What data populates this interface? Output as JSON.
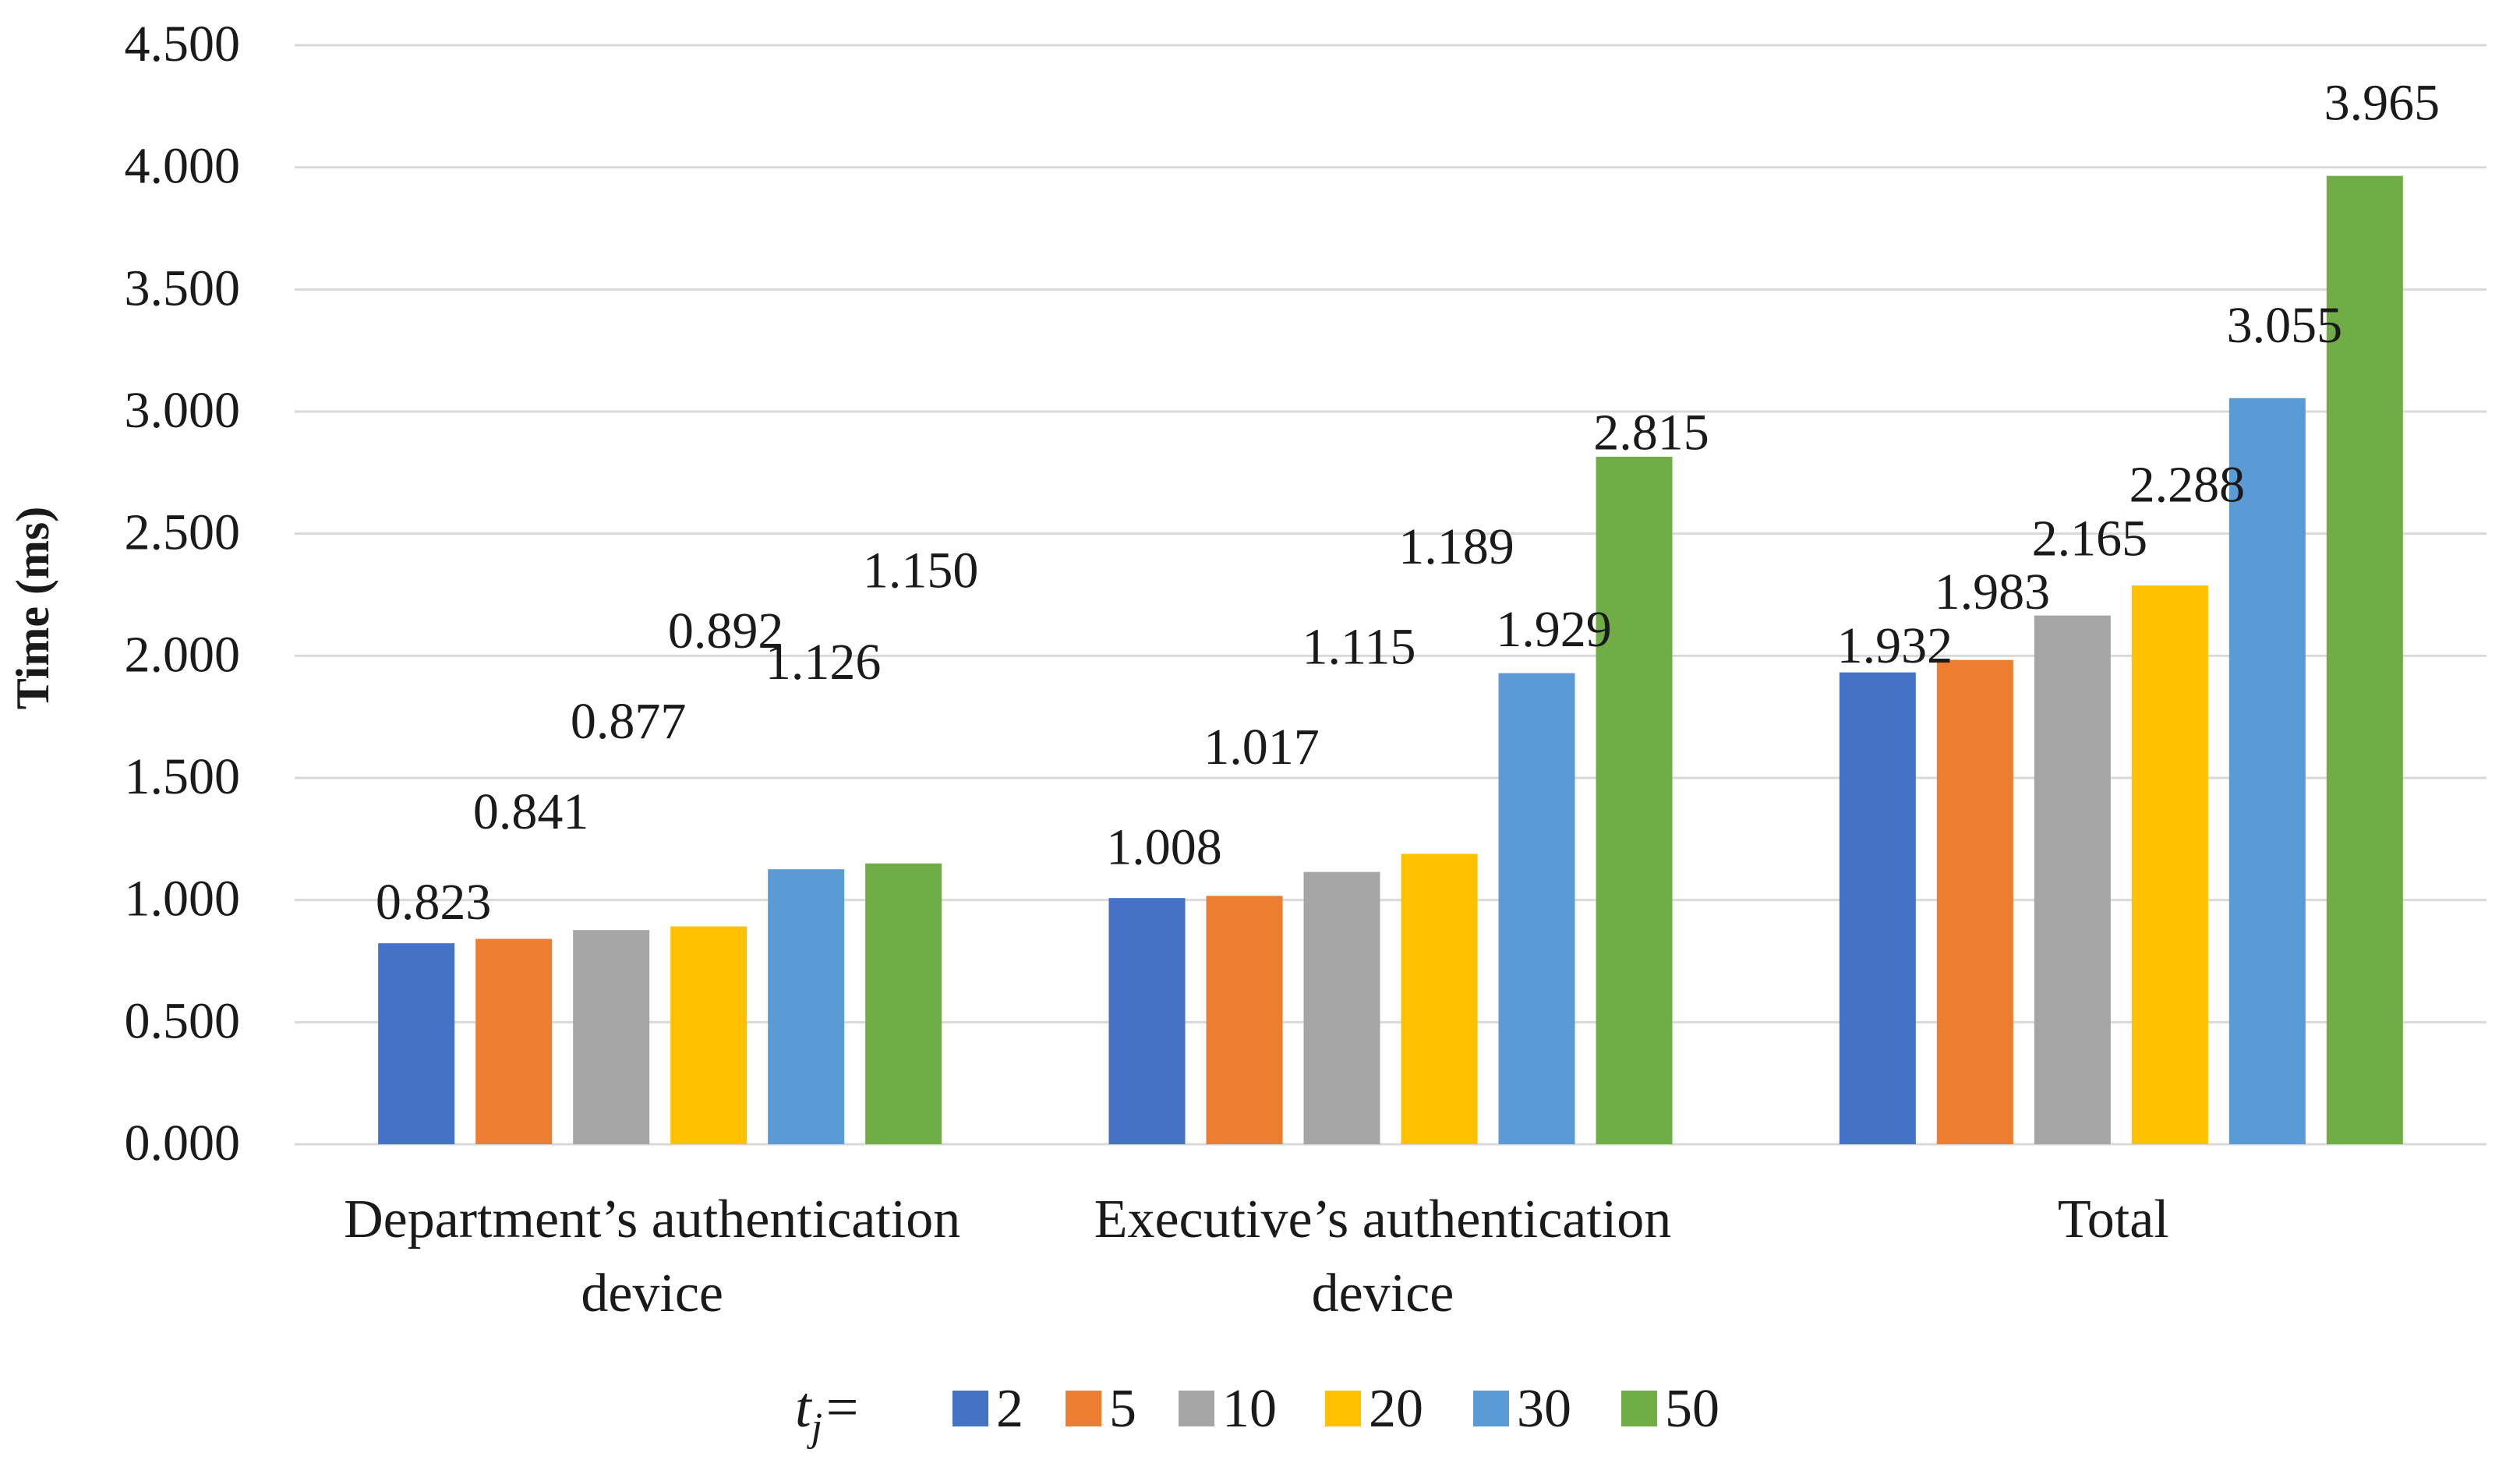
{
  "chart_data": {
    "type": "bar",
    "title": "",
    "xlabel": "",
    "ylabel": "Time (ms)",
    "ylim": [
      0,
      4.5
    ],
    "ytick_step": 0.5,
    "ytick_labels": [
      "0.000",
      "0.500",
      "1.000",
      "1.500",
      "2.000",
      "2.500",
      "3.000",
      "3.500",
      "4.000",
      "4.500"
    ],
    "grid": true,
    "categories": [
      [
        "Department’s authentication",
        "device"
      ],
      [
        "Executive’s authentication",
        "device"
      ],
      [
        "Total"
      ]
    ],
    "series": [
      {
        "name": "2",
        "color": "#4472C4",
        "values": [
          0.823,
          1.008,
          1.932
        ],
        "labels": [
          "0.823",
          "1.008",
          "1.932"
        ]
      },
      {
        "name": "5",
        "color": "#ED7D31",
        "values": [
          0.841,
          1.017,
          1.983
        ],
        "labels": [
          "0.841",
          "1.017",
          "1.983"
        ]
      },
      {
        "name": "10",
        "color": "#A5A5A5",
        "values": [
          0.877,
          1.115,
          2.165
        ],
        "labels": [
          "0.877",
          "1.115",
          "2.165"
        ]
      },
      {
        "name": "20",
        "color": "#FFC000",
        "values": [
          0.892,
          1.189,
          2.288
        ],
        "labels": [
          "0.892",
          "1.189",
          "2.288"
        ]
      },
      {
        "name": "30",
        "color": "#5B9BD5",
        "values": [
          1.126,
          1.929,
          3.055
        ],
        "labels": [
          "1.126",
          "1.929",
          "3.055"
        ]
      },
      {
        "name": "50",
        "color": "#70AD47",
        "values": [
          1.15,
          2.815,
          3.965
        ],
        "labels": [
          "1.150",
          "2.815",
          "3.965"
        ]
      }
    ],
    "legend": {
      "position": "bottom",
      "title_base": "t",
      "title_sub": "j",
      "title_suffix": "="
    }
  }
}
